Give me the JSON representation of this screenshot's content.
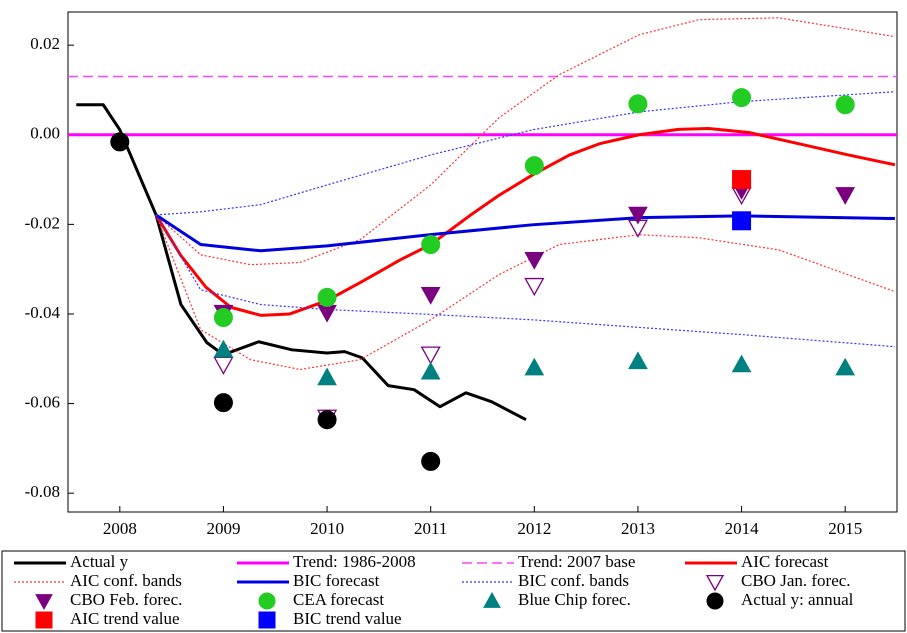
{
  "chart_data": {
    "type": "line",
    "xlim": [
      2008,
      2016
    ],
    "ylim": [
      -0.0842,
      0.0274
    ],
    "xticks": [
      {
        "value": 2008.5,
        "label": "2008"
      },
      {
        "value": 2009.5,
        "label": "2009"
      },
      {
        "value": 2010.5,
        "label": "2010"
      },
      {
        "value": 2011.5,
        "label": "2011"
      },
      {
        "value": 2012.5,
        "label": "2012"
      },
      {
        "value": 2013.5,
        "label": "2013"
      },
      {
        "value": 2014.5,
        "label": "2014"
      },
      {
        "value": 2015.5,
        "label": "2015"
      }
    ],
    "yticks": [
      0.02,
      {
        "value": 0,
        "label": "0.00"
      },
      -0.02,
      -0.04,
      -0.06,
      -0.08
    ],
    "series": [
      {
        "name": "Actual y",
        "color": "#000000",
        "style": "solid",
        "width": 3,
        "x": [
          2008.08,
          2008.34,
          2008.5,
          2008.85,
          2009.09,
          2009.34,
          2009.5,
          2009.84,
          2010.16,
          2010.5,
          2010.67,
          2010.84,
          2011.09,
          2011.34,
          2011.59,
          2011.84,
          2012.09,
          2012.42
        ],
        "values": [
          0.0067,
          0.0067,
          0.0011,
          -0.0179,
          -0.0379,
          -0.0464,
          -0.0491,
          -0.0462,
          -0.048,
          -0.0487,
          -0.0484,
          -0.0498,
          -0.056,
          -0.0569,
          -0.0607,
          -0.0576,
          -0.0596,
          -0.0636
        ]
      },
      {
        "name": "Trend: 1986-2008",
        "color": "#ff00ff",
        "style": "solid",
        "width": 3,
        "x": [
          2008,
          2016
        ],
        "values": [
          0,
          0
        ]
      },
      {
        "name": "Trend: 2007 base",
        "color": "#ff44ff",
        "style": "dashed",
        "width": 1.5,
        "x": [
          2008,
          2016
        ],
        "values": [
          0.013,
          0.013
        ]
      },
      {
        "name": "AIC forecast",
        "color": "#ff0000",
        "style": "solid",
        "width": 3,
        "x": [
          2008.85,
          2009.09,
          2009.33,
          2009.57,
          2009.86,
          2010.14,
          2010.5,
          2010.82,
          2011.2,
          2011.5,
          2011.88,
          2012.16,
          2012.48,
          2012.84,
          2013.13,
          2013.51,
          2013.89,
          2014.18,
          2014.57,
          2015.05,
          2015.53,
          2015.98
        ],
        "values": [
          -0.0179,
          -0.027,
          -0.034,
          -0.0385,
          -0.0403,
          -0.04,
          -0.037,
          -0.033,
          -0.028,
          -0.0245,
          -0.018,
          -0.0135,
          -0.009,
          -0.0045,
          -0.002,
          0,
          0.0012,
          0.0014,
          0.0005,
          -0.002,
          -0.0045,
          -0.0067
        ]
      },
      {
        "name": "AIC conf. bands",
        "color": "#ff3333",
        "style": "dotted",
        "width": 1.2,
        "x": [
          2008.85,
          2009.28,
          2009.76,
          2010.24,
          2010.82,
          2011.5,
          2012.16,
          2012.74,
          2013.51,
          2014.09,
          2014.86,
          2015.98
        ],
        "upper": [
          -0.0179,
          -0.0268,
          -0.029,
          -0.0285,
          -0.0234,
          -0.0112,
          0.0038,
          0.0134,
          0.0223,
          0.0257,
          0.0261,
          0.0219
        ],
        "lower": [
          -0.0179,
          -0.0435,
          -0.0502,
          -0.0524,
          -0.0502,
          -0.0413,
          -0.0312,
          -0.0245,
          -0.0223,
          -0.023,
          -0.0257,
          -0.035
        ]
      },
      {
        "name": "BIC forecast",
        "color": "#0000dd",
        "style": "solid",
        "width": 3,
        "x": [
          2008.85,
          2009.28,
          2009.86,
          2010.5,
          2011.5,
          2012.48,
          2013.51,
          2014.5,
          2015.98
        ],
        "values": [
          -0.0179,
          -0.0245,
          -0.0259,
          -0.0248,
          -0.0223,
          -0.0201,
          -0.0185,
          -0.0181,
          -0.0187
        ]
      },
      {
        "name": "BIC conf. bands",
        "color": "#3333ff",
        "style": "dotted",
        "width": 1.2,
        "x": [
          2008.85,
          2009.28,
          2009.86,
          2010.5,
          2011.5,
          2012.48,
          2013.51,
          2014.5,
          2015.98
        ],
        "upper": [
          -0.0179,
          -0.0172,
          -0.0156,
          -0.0112,
          -0.0045,
          0.0011,
          0.0051,
          0.0074,
          0.0096
        ],
        "lower": [
          -0.0179,
          -0.0346,
          -0.0379,
          -0.039,
          -0.0401,
          -0.0413,
          -0.043,
          -0.0446,
          -0.0473
        ]
      },
      {
        "name": "CBO Jan. forec.",
        "color": "#7a0080",
        "marker": "triangle-down-open",
        "x": [
          2009.5,
          2010.5,
          2011.5,
          2012.5,
          2013.5,
          2014.5
        ],
        "values": [
          -0.0513,
          -0.0631,
          -0.049,
          -0.0337,
          -0.0207,
          -0.0134
        ]
      },
      {
        "name": "CBO Feb. forec.",
        "color": "#7a0080",
        "marker": "triangle-down",
        "x": [
          2009.5,
          2010.5,
          2011.5,
          2012.5,
          2013.5,
          2014.5,
          2015.5
        ],
        "values": [
          -0.0397,
          -0.0397,
          -0.0357,
          -0.0279,
          -0.0178,
          -0.0123,
          -0.0134
        ]
      },
      {
        "name": "CEA forecast",
        "color": "#22cc22",
        "marker": "circle",
        "x": [
          2009.5,
          2010.5,
          2011.5,
          2012.5,
          2013.5,
          2014.5,
          2015.5
        ],
        "values": [
          -0.0408,
          -0.0363,
          -0.0245,
          -0.0069,
          0.0069,
          0.0083,
          0.0067
        ]
      },
      {
        "name": "Blue Chip forec.",
        "color": "#008080",
        "marker": "triangle-up",
        "x": [
          2009.5,
          2010.5,
          2011.5,
          2012.5,
          2013.5,
          2014.5,
          2015.5
        ],
        "values": [
          -0.048,
          -0.0542,
          -0.0529,
          -0.052,
          -0.0506,
          -0.0513,
          -0.052
        ]
      },
      {
        "name": "Actual y: annual",
        "color": "#000000",
        "marker": "circle",
        "x": [
          2008.5,
          2009.5,
          2010.5,
          2011.5
        ],
        "values": [
          -0.0016,
          -0.0598,
          -0.0636,
          -0.0729
        ]
      },
      {
        "name": "AIC trend value",
        "color": "#ff0000",
        "marker": "square",
        "x": [
          2014.5
        ],
        "values": [
          -0.01
        ]
      },
      {
        "name": "BIC trend value",
        "color": "#0000ff",
        "marker": "square",
        "x": [
          2014.5
        ],
        "values": [
          -0.0192
        ]
      }
    ]
  }
}
